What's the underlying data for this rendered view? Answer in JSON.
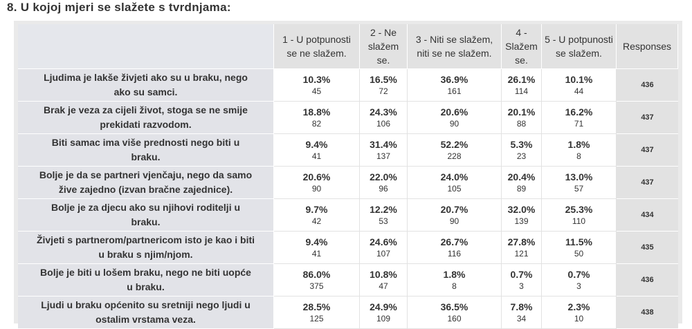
{
  "question_title": "8. U kojoj mjeri se slažete s tvrdnjama:",
  "columns": [
    "1 - U potpunosti se ne slažem.",
    "2 - Ne slažem se.",
    "3 - Niti se slažem, niti se ne slažem.",
    "4 - Slažem se.",
    "5 - U potpunosti se slažem.",
    "Responses"
  ],
  "header_lines": [
    [
      "1 - U potpunosti",
      "se ne slažem."
    ],
    [
      "2 - Ne",
      "slažem",
      "se."
    ],
    [
      "3 - Niti se slažem,",
      "niti se ne slažem."
    ],
    [
      "4 -",
      "Slažem",
      "se."
    ],
    [
      "5 - U potpunosti",
      "se slažem."
    ],
    [
      "Responses"
    ]
  ],
  "rows": [
    {
      "statement": "Ljudima je lakše živjeti ako su u braku, nego ako su samci.",
      "statement_lines": [
        "Ljudima je lakše živjeti ako su u braku, nego",
        "ako su samci."
      ],
      "cells": [
        {
          "pct": "10.3%",
          "count": "45"
        },
        {
          "pct": "16.5%",
          "count": "72"
        },
        {
          "pct": "36.9%",
          "count": "161"
        },
        {
          "pct": "26.1%",
          "count": "114"
        },
        {
          "pct": "10.1%",
          "count": "44"
        }
      ],
      "responses": "436"
    },
    {
      "statement": "Brak je veza za cijeli život, stoga se ne smije prekidati razvodom.",
      "statement_lines": [
        "Brak je veza za cijeli život, stoga se ne smije",
        "prekidati razvodom."
      ],
      "cells": [
        {
          "pct": "18.8%",
          "count": "82"
        },
        {
          "pct": "24.3%",
          "count": "106"
        },
        {
          "pct": "20.6%",
          "count": "90"
        },
        {
          "pct": "20.1%",
          "count": "88"
        },
        {
          "pct": "16.2%",
          "count": "71"
        }
      ],
      "responses": "437"
    },
    {
      "statement": "Biti samac ima više prednosti nego biti u braku.",
      "statement_lines": [
        "Biti samac ima više prednosti nego biti u",
        "braku."
      ],
      "cells": [
        {
          "pct": "9.4%",
          "count": "41"
        },
        {
          "pct": "31.4%",
          "count": "137"
        },
        {
          "pct": "52.2%",
          "count": "228"
        },
        {
          "pct": "5.3%",
          "count": "23"
        },
        {
          "pct": "1.8%",
          "count": "8"
        }
      ],
      "responses": "437"
    },
    {
      "statement": "Bolje je da se partneri vjenčaju, nego da samo žive zajedno (izvan bračne zajednice).",
      "statement_lines": [
        "Bolje je da se partneri vjenčaju, nego da samo",
        "žive zajedno (izvan bračne zajednice)."
      ],
      "cells": [
        {
          "pct": "20.6%",
          "count": "90"
        },
        {
          "pct": "22.0%",
          "count": "96"
        },
        {
          "pct": "24.0%",
          "count": "105"
        },
        {
          "pct": "20.4%",
          "count": "89"
        },
        {
          "pct": "13.0%",
          "count": "57"
        }
      ],
      "responses": "437"
    },
    {
      "statement": "Bolje je za djecu ako su njihovi roditelji u braku.",
      "statement_lines": [
        "Bolje je za djecu ako su njihovi roditelji u",
        "braku."
      ],
      "cells": [
        {
          "pct": "9.7%",
          "count": "42"
        },
        {
          "pct": "12.2%",
          "count": "53"
        },
        {
          "pct": "20.7%",
          "count": "90"
        },
        {
          "pct": "32.0%",
          "count": "139"
        },
        {
          "pct": "25.3%",
          "count": "110"
        }
      ],
      "responses": "434"
    },
    {
      "statement": "Živjeti s partnerom/partnericom isto je kao i biti u braku s njim/njom.",
      "statement_lines": [
        "Živjeti s partnerom/partnericom isto je kao i biti",
        "u braku s njim/njom."
      ],
      "cells": [
        {
          "pct": "9.4%",
          "count": "41"
        },
        {
          "pct": "24.6%",
          "count": "107"
        },
        {
          "pct": "26.7%",
          "count": "116"
        },
        {
          "pct": "27.8%",
          "count": "121"
        },
        {
          "pct": "11.5%",
          "count": "50"
        }
      ],
      "responses": "435"
    },
    {
      "statement": "Bolje je biti u lošem braku, nego ne biti uopće u braku.",
      "statement_lines": [
        "Bolje je biti u lošem braku, nego ne biti uopće",
        "u braku."
      ],
      "cells": [
        {
          "pct": "86.0%",
          "count": "375"
        },
        {
          "pct": "10.8%",
          "count": "47"
        },
        {
          "pct": "1.8%",
          "count": "8"
        },
        {
          "pct": "0.7%",
          "count": "3"
        },
        {
          "pct": "0.7%",
          "count": "3"
        }
      ],
      "responses": "436"
    },
    {
      "statement": "Ljudi u braku općenito su sretniji nego ljudi u ostalim vrstama veza.",
      "statement_lines": [
        "Ljudi u braku općenito su sretniji nego ljudi u",
        "ostalim vrstama veza."
      ],
      "cells": [
        {
          "pct": "28.5%",
          "count": "125"
        },
        {
          "pct": "24.9%",
          "count": "109"
        },
        {
          "pct": "36.5%",
          "count": "160"
        },
        {
          "pct": "7.8%",
          "count": "34"
        },
        {
          "pct": "2.3%",
          "count": "10"
        }
      ],
      "responses": "438"
    }
  ]
}
